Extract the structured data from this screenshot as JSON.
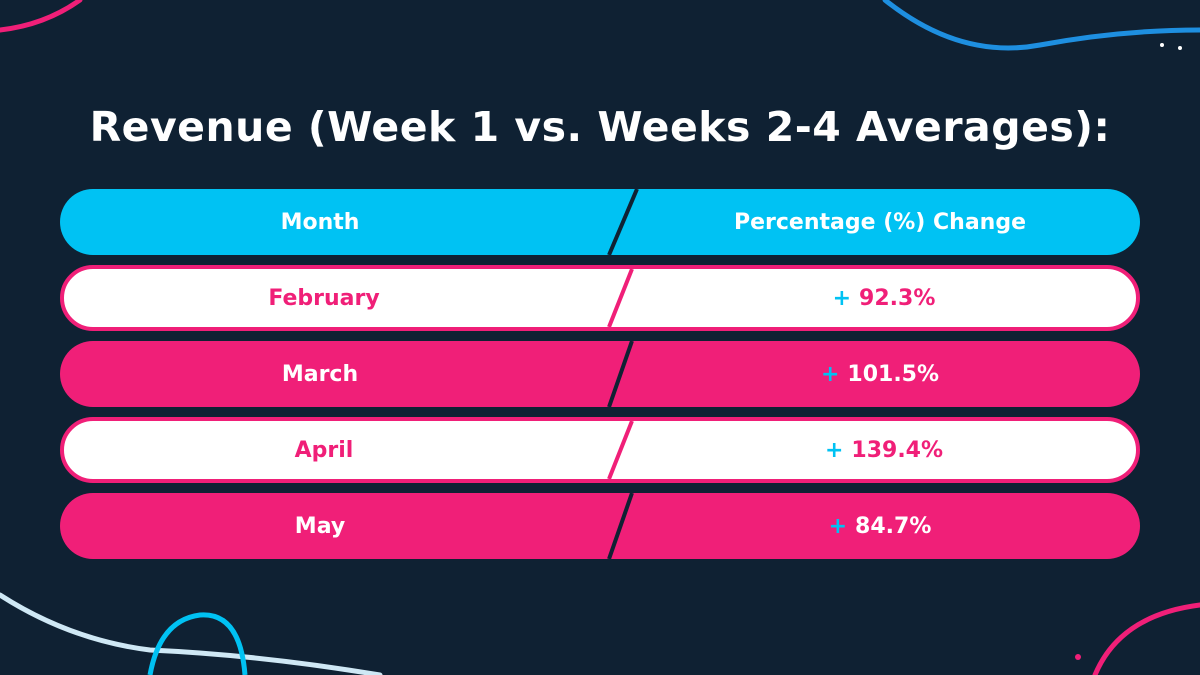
{
  "chart_data": {
    "type": "table",
    "title": "Revenue (Week 1 vs. Weeks 2-4 Averages):",
    "columns": [
      "Month",
      "Percentage (%) Change"
    ],
    "rows": [
      {
        "month": "February",
        "sign": "+",
        "change": "92.3%",
        "value": 92.3
      },
      {
        "month": "March",
        "sign": "+",
        "change": "101.5%",
        "value": 101.5
      },
      {
        "month": "April",
        "sign": "+",
        "change": "139.4%",
        "value": 139.4
      },
      {
        "month": "May",
        "sign": "+",
        "change": "84.7%",
        "value": 84.7
      }
    ]
  },
  "colors": {
    "background": "#0f2133",
    "header": "#00c2f3",
    "accent_pink": "#f01f78",
    "row_light": "#ffffff"
  }
}
